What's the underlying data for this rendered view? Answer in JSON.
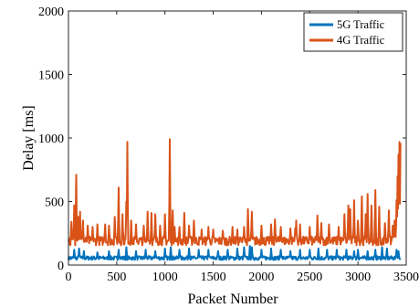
{
  "chart_data": {
    "type": "line",
    "xlabel": "Packet Number",
    "ylabel": "Delay [ms]",
    "xlim": [
      0,
      3500
    ],
    "ylim": [
      0,
      2000
    ],
    "xticks": [
      0,
      500,
      1000,
      1500,
      2000,
      2500,
      3000,
      3500
    ],
    "yticks": [
      0,
      500,
      1000,
      1500,
      2000
    ],
    "grid": false,
    "legend_position": "top-right",
    "series": [
      {
        "name": "5G Traffic",
        "color": "#0072BD",
        "baseline": 55,
        "noise": 15,
        "spikes": [
          [
            60,
            120
          ],
          [
            110,
            130
          ],
          [
            160,
            110
          ],
          [
            300,
            100
          ],
          [
            420,
            110
          ],
          [
            520,
            120
          ],
          [
            600,
            140
          ],
          [
            700,
            110
          ],
          [
            800,
            120
          ],
          [
            900,
            110
          ],
          [
            1000,
            130
          ],
          [
            1060,
            140
          ],
          [
            1150,
            120
          ],
          [
            1250,
            130
          ],
          [
            1350,
            120
          ],
          [
            1450,
            120
          ],
          [
            1550,
            110
          ],
          [
            1650,
            120
          ],
          [
            1750,
            130
          ],
          [
            1820,
            140
          ],
          [
            1880,
            150
          ],
          [
            1900,
            140
          ],
          [
            2000,
            120
          ],
          [
            2100,
            130
          ],
          [
            2200,
            120
          ],
          [
            2300,
            110
          ],
          [
            2400,
            120
          ],
          [
            2500,
            120
          ],
          [
            2590,
            130
          ],
          [
            2680,
            120
          ],
          [
            2780,
            120
          ],
          [
            2880,
            120
          ],
          [
            2960,
            110
          ],
          [
            3000,
            120
          ],
          [
            3100,
            110
          ],
          [
            3180,
            120
          ],
          [
            3250,
            140
          ],
          [
            3300,
            130
          ],
          [
            3400,
            120
          ],
          [
            3420,
            110
          ]
        ],
        "x_max": 3440
      },
      {
        "name": "4G Traffic",
        "color": "#D95319",
        "baseline": 190,
        "noise": 35,
        "spikes": [
          [
            30,
            340
          ],
          [
            60,
            470
          ],
          [
            80,
            710
          ],
          [
            100,
            380
          ],
          [
            120,
            420
          ],
          [
            150,
            350
          ],
          [
            200,
            310
          ],
          [
            250,
            300
          ],
          [
            300,
            320
          ],
          [
            380,
            320
          ],
          [
            420,
            310
          ],
          [
            480,
            380
          ],
          [
            520,
            610
          ],
          [
            560,
            400
          ],
          [
            600,
            500
          ],
          [
            610,
            970
          ],
          [
            650,
            350
          ],
          [
            700,
            320
          ],
          [
            780,
            310
          ],
          [
            820,
            420
          ],
          [
            860,
            410
          ],
          [
            900,
            400
          ],
          [
            950,
            310
          ],
          [
            1000,
            400
          ],
          [
            1050,
            990
          ],
          [
            1080,
            430
          ],
          [
            1100,
            300
          ],
          [
            1150,
            300
          ],
          [
            1200,
            410
          ],
          [
            1250,
            310
          ],
          [
            1300,
            350
          ],
          [
            1380,
            280
          ],
          [
            1450,
            300
          ],
          [
            1500,
            280
          ],
          [
            1600,
            270
          ],
          [
            1700,
            300
          ],
          [
            1750,
            280
          ],
          [
            1820,
            300
          ],
          [
            1860,
            440
          ],
          [
            1900,
            420
          ],
          [
            2000,
            310
          ],
          [
            2100,
            320
          ],
          [
            2140,
            360
          ],
          [
            2200,
            300
          ],
          [
            2300,
            290
          ],
          [
            2350,
            290
          ],
          [
            2360,
            350
          ],
          [
            2400,
            320
          ],
          [
            2500,
            300
          ],
          [
            2580,
            390
          ],
          [
            2620,
            330
          ],
          [
            2700,
            320
          ],
          [
            2800,
            300
          ],
          [
            2860,
            400
          ],
          [
            2900,
            470
          ],
          [
            2920,
            440
          ],
          [
            2960,
            510
          ],
          [
            3000,
            350
          ],
          [
            3040,
            540
          ],
          [
            3080,
            400
          ],
          [
            3100,
            560
          ],
          [
            3140,
            470
          ],
          [
            3180,
            590
          ],
          [
            3220,
            460
          ],
          [
            3280,
            330
          ],
          [
            3320,
            430
          ],
          [
            3360,
            310
          ],
          [
            3380,
            350
          ],
          [
            3400,
            510
          ],
          [
            3410,
            700
          ],
          [
            3420,
            870
          ],
          [
            3430,
            970
          ],
          [
            3440,
            960
          ]
        ],
        "x_max": 3440
      }
    ]
  }
}
